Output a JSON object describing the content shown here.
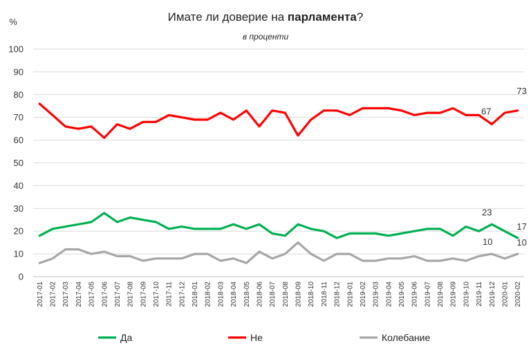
{
  "chart_data": {
    "type": "line",
    "title_plain": "Имате ли доверие на ",
    "title_bold": "парламента",
    "title_end": "?",
    "subtitle": "в проценти",
    "ylabel": "%",
    "ylim": [
      0,
      100
    ],
    "yticks": [
      "0",
      "10",
      "20",
      "30",
      "40",
      "50",
      "60",
      "70",
      "80",
      "90",
      "100"
    ],
    "grid": true,
    "legend_position": "bottom",
    "categories": [
      "2017-01",
      "2017-02",
      "2017-03",
      "2017-04",
      "2017-05",
      "2017-06",
      "2017-07",
      "2017-08",
      "2017-09",
      "2017-10",
      "2017-11",
      "2017-12",
      "2018-01",
      "2018-02",
      "2018-03",
      "2018-04",
      "2018-05",
      "2018-06",
      "2018-07",
      "2018-08",
      "2018-09",
      "2018-10",
      "2018-11",
      "2018-12",
      "2019-01",
      "2019-02",
      "2019-03",
      "2019-04",
      "2019-05",
      "2019-06",
      "2019-07",
      "2019-08",
      "2019-09",
      "2019-10",
      "2019-11",
      "2019-12",
      "2020-01",
      "2020-02"
    ],
    "series": [
      {
        "name": "Да",
        "color": "#00b050",
        "values": [
          18,
          21,
          22,
          23,
          24,
          28,
          24,
          26,
          25,
          24,
          21,
          22,
          21,
          21,
          21,
          23,
          21,
          23,
          19,
          18,
          23,
          21,
          20,
          17,
          19,
          19,
          19,
          18,
          19,
          20,
          21,
          21,
          18,
          22,
          20,
          23,
          20,
          17
        ]
      },
      {
        "name": "Не",
        "color": "#ff0000",
        "values": [
          76,
          71,
          66,
          65,
          66,
          61,
          67,
          65,
          68,
          68,
          71,
          70,
          69,
          69,
          72,
          69,
          73,
          66,
          73,
          72,
          62,
          69,
          73,
          73,
          71,
          74,
          74,
          74,
          73,
          71,
          72,
          72,
          74,
          71,
          71,
          67,
          72,
          73
        ]
      },
      {
        "name": "Колебание",
        "color": "#a6a6a6",
        "values": [
          6,
          8,
          12,
          12,
          10,
          11,
          9,
          9,
          7,
          8,
          8,
          8,
          10,
          10,
          7,
          8,
          6,
          11,
          8,
          10,
          15,
          10,
          7,
          10,
          10,
          7,
          7,
          8,
          8,
          9,
          7,
          7,
          8,
          7,
          9,
          10,
          8,
          10
        ]
      }
    ],
    "annotations": [
      {
        "label": "67",
        "series": 1,
        "index": 35
      },
      {
        "label": "73",
        "series": 1,
        "index": 37
      },
      {
        "label": "23",
        "series": 0,
        "index": 35
      },
      {
        "label": "17",
        "series": 0,
        "index": 37
      },
      {
        "label": "10",
        "series": 2,
        "index": 35
      },
      {
        "label": "10",
        "series": 2,
        "index": 37
      }
    ]
  }
}
